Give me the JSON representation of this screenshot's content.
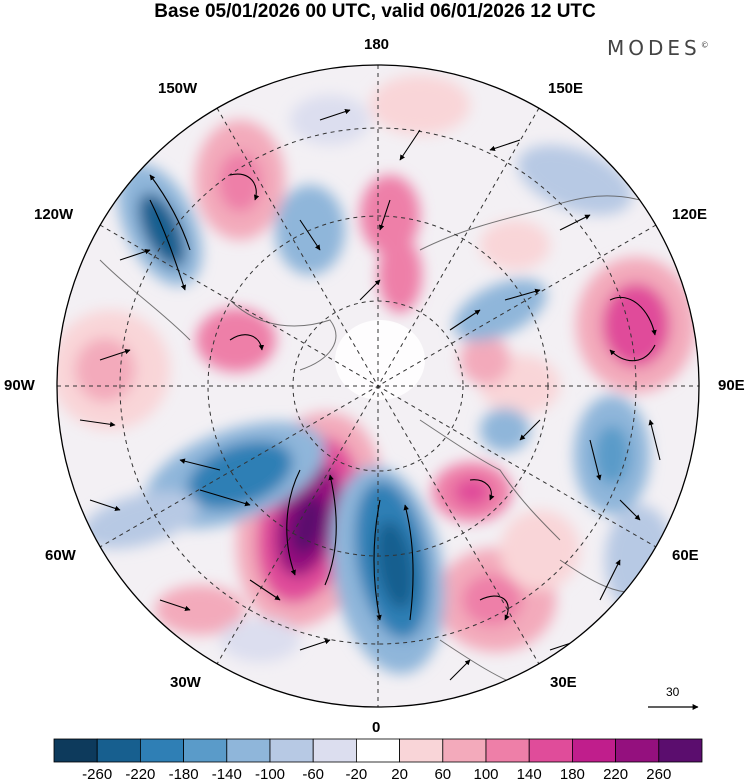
{
  "title": "Base 05/01/2026 00 UTC, valid 06/01/2026 12 UTC",
  "brand": "MODES",
  "brand_mark": "©",
  "longitude_labels": {
    "top": "180",
    "top_left": "150W",
    "top_right": "150E",
    "upper_left": "120W",
    "upper_right": "120E",
    "left": "90W",
    "right": "90E",
    "lower_left": "60W",
    "lower_right": "60E",
    "bottom_left": "30W",
    "bottom_right": "30E",
    "bottom": "0"
  },
  "wind_reference": {
    "value": "30"
  },
  "colorbar": {
    "colors": [
      "#0d3a5c",
      "#175f8f",
      "#2f7fb5",
      "#5a9bc9",
      "#8fb6da",
      "#b7c9e4",
      "#dcdeef",
      "#ffffff",
      "#f9d5d8",
      "#f3aabb",
      "#ee7fa8",
      "#e04c9a",
      "#c01e8c",
      "#94107e",
      "#5b0d6e"
    ],
    "ticks": [
      "-260",
      "-220",
      "-180",
      "-140",
      "-100",
      "-60",
      "-20",
      "20",
      "60",
      "100",
      "140",
      "180",
      "220",
      "260"
    ]
  }
}
